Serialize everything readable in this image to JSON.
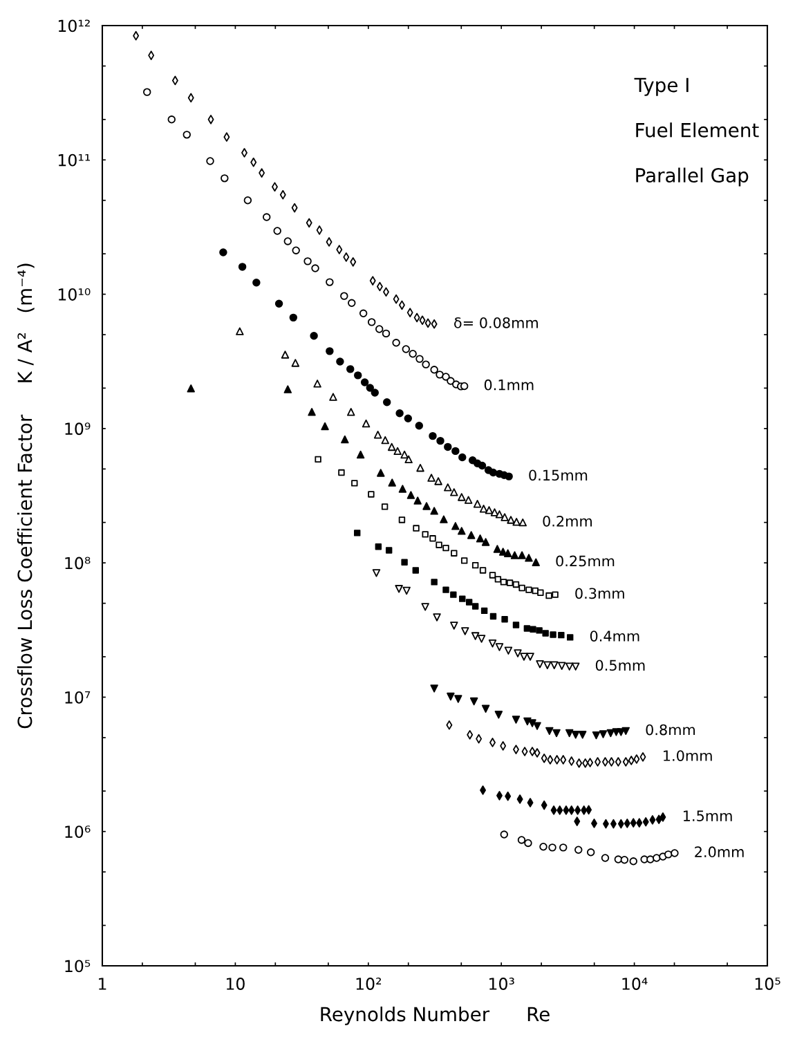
{
  "chart_data": {
    "type": "scatter",
    "xlabel": "Reynolds Number      Re",
    "ylabel": "Crossflow Loss Coefficient Factor     K / A²   (m⁻⁴)",
    "annotations": [
      "Type I",
      "Fuel Element",
      "Parallel Gap"
    ],
    "log": "xy",
    "grid": false,
    "xlim": [
      1,
      100000
    ],
    "ylim": [
      100000,
      1000000000000
    ],
    "xticks": [
      1,
      {
        "value": 2,
        "label": null
      },
      {
        "value": 5,
        "label": null
      },
      10,
      {
        "value": 20,
        "label": null
      },
      {
        "value": 50,
        "label": null
      },
      {
        "value": 100,
        "label": "10²"
      },
      {
        "value": 200,
        "label": null
      },
      {
        "value": 500,
        "label": null
      },
      {
        "value": 1000,
        "label": "10³"
      },
      {
        "value": 2000,
        "label": null
      },
      {
        "value": 5000,
        "label": null
      },
      {
        "value": 10000,
        "label": "10⁴"
      },
      {
        "value": 20000,
        "label": null
      },
      {
        "value": 50000,
        "label": null
      },
      {
        "value": 100000,
        "label": "10⁵"
      }
    ],
    "yticks": [
      {
        "value": 100000,
        "label": "10⁵"
      },
      {
        "value": 200000,
        "label": null
      },
      {
        "value": 500000,
        "label": null
      },
      {
        "value": 1000000,
        "label": "10⁶"
      },
      {
        "value": 2000000,
        "label": null
      },
      {
        "value": 5000000,
        "label": null
      },
      {
        "value": 10000000,
        "label": "10⁷"
      },
      {
        "value": 20000000,
        "label": null
      },
      {
        "value": 50000000,
        "label": null
      },
      {
        "value": 100000000,
        "label": "10⁸"
      },
      {
        "value": 200000000,
        "label": null
      },
      {
        "value": 500000000,
        "label": null
      },
      {
        "value": 1000000000,
        "label": "10⁹"
      },
      {
        "value": 2000000000,
        "label": null
      },
      {
        "value": 5000000000,
        "label": null
      },
      {
        "value": 10000000000,
        "label": "10¹⁰"
      },
      {
        "value": 20000000000,
        "label": null
      },
      {
        "value": 50000000000,
        "label": null
      },
      {
        "value": 100000000000,
        "label": "10¹¹"
      },
      {
        "value": 200000000000,
        "label": null
      },
      {
        "value": 500000000000,
        "label": null
      },
      {
        "value": 1000000000000,
        "label": "10¹²"
      }
    ],
    "series": [
      {
        "name": "δ= 0.08mm",
        "color": "#000000",
        "marker": "diamond_open",
        "x": [
          1.79,
          2.33,
          3.53,
          4.64,
          6.55,
          8.61,
          11.7,
          13.7,
          15.8,
          19.8,
          22.8,
          27.9,
          35.9,
          42.9,
          50.7,
          60.5,
          68.2,
          76.8,
          108,
          122,
          136,
          162,
          179,
          206,
          232,
          255,
          281,
          313
        ],
        "values": [
          840000000000.0,
          600000000000.0,
          390000000000.0,
          290000000000.0,
          200000000000.0,
          148000000000.0,
          113000000000.0,
          96000000000.0,
          80000000000.0,
          63000000000.0,
          55000000000.0,
          44000000000.0,
          34000000000.0,
          30000000000.0,
          24500000000.0,
          21500000000.0,
          18900000000.0,
          17400000000.0,
          12600000000.0,
          11400000000.0,
          10400000000.0,
          9200000000.0,
          8300000000.0,
          7300000000.0,
          6700000000.0,
          6400000000.0,
          6100000000.0,
          6000000000.0
        ]
      },
      {
        "name": "0.1mm",
        "color": "#000000",
        "marker": "circle_open",
        "x": [
          2.17,
          3.32,
          4.32,
          6.47,
          8.3,
          12.4,
          17.2,
          20.7,
          24.8,
          28.6,
          35.0,
          39.9,
          51.2,
          65.8,
          75.0,
          91.8,
          106,
          121,
          136,
          162,
          192,
          216,
          243,
          271,
          313,
          344,
          383,
          416,
          457,
          497,
          527
        ],
        "values": [
          320000000000.0,
          200000000000.0,
          154000000000.0,
          98000000000.0,
          73000000000.0,
          50000000000.0,
          37500000000.0,
          29600000000.0,
          24800000000.0,
          21200000000.0,
          17600000000.0,
          15600000000.0,
          12300000000.0,
          9700000000.0,
          8600000000.0,
          7200000000.0,
          6200000000.0,
          5500000000.0,
          5100000000.0,
          4350000000.0,
          3900000000.0,
          3600000000.0,
          3300000000.0,
          3000000000.0,
          2740000000.0,
          2520000000.0,
          2430000000.0,
          2260000000.0,
          2130000000.0,
          2060000000.0,
          2070000000.0
        ]
      },
      {
        "name": "0.15mm",
        "color": "#000000",
        "marker": "circle",
        "x": [
          8.11,
          11.3,
          14.4,
          21.3,
          27.3,
          39.0,
          51.2,
          61.3,
          73.2,
          83.5,
          94,
          103,
          112,
          138,
          172,
          199,
          241,
          305,
          348,
          396,
          452,
          509,
          608,
          661,
          718,
          800,
          869,
          968,
          1050,
          1140
        ],
        "values": [
          20500000000.0,
          16000000000.0,
          12200000000.0,
          8500000000.0,
          6700000000.0,
          4900000000.0,
          3770000000.0,
          3150000000.0,
          2770000000.0,
          2490000000.0,
          2210000000.0,
          2010000000.0,
          1850000000.0,
          1570000000.0,
          1300000000.0,
          1190000000.0,
          1050000000.0,
          880000000.0,
          810000000.0,
          730000000.0,
          680000000.0,
          610000000.0,
          580000000.0,
          550000000.0,
          530000000.0,
          490000000.0,
          470000000.0,
          460000000.0,
          450000000.0,
          440000000.0
        ]
      },
      {
        "name": "0.2mm",
        "color": "#000000",
        "marker": "triangle_open",
        "x": [
          10.8,
          23.7,
          28.3,
          41.4,
          54.4,
          74.1,
          96.2,
          118,
          134,
          150,
          166,
          187,
          201,
          246,
          298,
          336,
          396,
          441,
          503,
          566,
          661,
          736,
          809,
          890,
          968,
          1060,
          1180,
          1300,
          1450
        ],
        "values": [
          5300000000.0,
          3550000000.0,
          3080000000.0,
          2160000000.0,
          1720000000.0,
          1330000000.0,
          1090000000.0,
          900000000.0,
          820000000.0,
          730000000.0,
          680000000.0,
          640000000.0,
          590000000.0,
          510000000.0,
          430000000.0,
          406000000.0,
          365000000.0,
          336000000.0,
          309000000.0,
          294000000.0,
          275000000.0,
          253000000.0,
          247000000.0,
          238000000.0,
          230000000.0,
          219000000.0,
          209000000.0,
          202000000.0,
          200000000.0
        ]
      },
      {
        "name": "0.25mm",
        "color": "#000000",
        "marker": "triangle",
        "x": [
          4.64,
          24.8,
          37.6,
          47.2,
          66.6,
          87.5,
          124,
          151,
          181,
          209,
          235,
          274,
          313,
          369,
          452,
          503,
          594,
          693,
          763,
          933,
          1030,
          1120,
          1260,
          1430,
          1610,
          1820
        ],
        "values": [
          1990000000.0,
          1960000000.0,
          1330000000.0,
          1040000000.0,
          830000000.0,
          640000000.0,
          468000000.0,
          396000000.0,
          356000000.0,
          320000000.0,
          291000000.0,
          265000000.0,
          244000000.0,
          211000000.0,
          188000000.0,
          173000000.0,
          161000000.0,
          152000000.0,
          143000000.0,
          127000000.0,
          121000000.0,
          118000000.0,
          114000000.0,
          114000000.0,
          109000000.0,
          101000000.0
        ]
      },
      {
        "name": "0.3mm",
        "color": "#000000",
        "marker": "square_open",
        "x": [
          41.9,
          62.8,
          78.7,
          105,
          133,
          179,
          229,
          268,
          305,
          340,
          383,
          441,
          527,
          638,
          727,
          859,
          944,
          1040,
          1160,
          1290,
          1430,
          1610,
          1800,
          1970,
          2280,
          2540
        ],
        "values": [
          590000000.0,
          470000000.0,
          392000000.0,
          324000000.0,
          262000000.0,
          209000000.0,
          181000000.0,
          163000000.0,
          152000000.0,
          136000000.0,
          129000000.0,
          118000000.0,
          104000000.0,
          96000000.0,
          88000000.0,
          81000000.0,
          75500000.0,
          72000000.0,
          71000000.0,
          69000000.0,
          65000000.0,
          63000000.0,
          62000000.0,
          60000000.0,
          57000000.0,
          58000000.0
        ]
      },
      {
        "name": "0.4mm",
        "color": "#000000",
        "marker": "square",
        "x": [
          82.5,
          119,
          143,
          187,
          227,
          313,
          383,
          436,
          509,
          573,
          638,
          745,
          869,
          1060,
          1290,
          1560,
          1730,
          1930,
          2150,
          2450,
          2820,
          3290
        ],
        "values": [
          167000000.0,
          132000000.0,
          124000000.0,
          101000000.0,
          88000000.0,
          72000000.0,
          63000000.0,
          58000000.0,
          54000000.0,
          51000000.0,
          47500000.0,
          44000000.0,
          40000000.0,
          38000000.0,
          34500000.0,
          32500000.0,
          32000000.0,
          31400000.0,
          29900000.0,
          29200000.0,
          29000000.0,
          27900000.0
        ]
      },
      {
        "name": "0.5mm",
        "color": "#000000",
        "marker": "triangle_down_open",
        "x": [
          115,
          170,
          194,
          268,
          328,
          441,
          534,
          638,
          710,
          859,
          968,
          1130,
          1330,
          1480,
          1650,
          1950,
          2220,
          2500,
          2850,
          3250,
          3620
        ],
        "values": [
          84000000.0,
          64000000.0,
          62000000.0,
          47000000.0,
          39300000.0,
          34100000.0,
          31000000.0,
          28500000.0,
          27200000.0,
          25100000.0,
          23600000.0,
          22200000.0,
          21200000.0,
          20000000.0,
          20000000.0,
          17600000.0,
          17300000.0,
          17300000.0,
          17100000.0,
          16900000.0,
          16900000.0
        ]
      },
      {
        "name": "0.8mm",
        "color": "#000000",
        "marker": "triangle_down",
        "x": [
          313,
          416,
          474,
          623,
          763,
          955,
          1290,
          1570,
          1710,
          1860,
          2300,
          2600,
          3250,
          3620,
          4080,
          5170,
          5830,
          6640,
          7310,
          7940,
          8630
        ],
        "values": [
          11600000.0,
          10100000.0,
          9700000.0,
          9300000.0,
          8200000.0,
          7400000.0,
          6800000.0,
          6600000.0,
          6400000.0,
          6100000.0,
          5600000.0,
          5400000.0,
          5400000.0,
          5250000.0,
          5250000.0,
          5200000.0,
          5300000.0,
          5400000.0,
          5500000.0,
          5500000.0,
          5600000.0
        ]
      },
      {
        "name": "1.0mm",
        "color": "#000000",
        "marker": "diamond_open",
        "x": [
          406,
          580,
          677,
          859,
          1030,
          1290,
          1500,
          1710,
          1860,
          2100,
          2330,
          2620,
          2920,
          3370,
          3840,
          4280,
          4650,
          5300,
          6040,
          6730,
          7570,
          8630,
          9490,
          10400,
          11600
        ],
        "values": [
          6200000.0,
          5250000.0,
          4900000.0,
          4600000.0,
          4340000.0,
          4080000.0,
          3940000.0,
          3940000.0,
          3850000.0,
          3510000.0,
          3420000.0,
          3420000.0,
          3420000.0,
          3340000.0,
          3230000.0,
          3230000.0,
          3260000.0,
          3300000.0,
          3300000.0,
          3300000.0,
          3300000.0,
          3300000.0,
          3380000.0,
          3460000.0,
          3590000.0
        ]
      },
      {
        "name": "1.5mm",
        "color": "#000000",
        "marker": "diamond",
        "x": [
          727,
          968,
          1120,
          1380,
          1650,
          2100,
          2480,
          2750,
          3070,
          3370,
          3710,
          3750,
          4180,
          4540,
          4990,
          6110,
          6970,
          7940,
          8840,
          9840,
          10900,
          12200,
          13700,
          15300,
          16400
        ],
        "values": [
          2030000.0,
          1850000.0,
          1830000.0,
          1740000.0,
          1640000.0,
          1570000.0,
          1440000.0,
          1440000.0,
          1440000.0,
          1440000.0,
          1190000.0,
          1440000.0,
          1440000.0,
          1450000.0,
          1150000.0,
          1140000.0,
          1140000.0,
          1140000.0,
          1150000.0,
          1160000.0,
          1160000.0,
          1180000.0,
          1220000.0,
          1230000.0,
          1280000.0
        ]
      },
      {
        "name": "2.0mm",
        "color": "#000000",
        "marker": "circle_open",
        "x": [
          1050,
          1420,
          1590,
          2070,
          2420,
          2920,
          3800,
          4710,
          6040,
          7570,
          8430,
          9840,
          11900,
          13200,
          14700,
          16400,
          18000,
          20100
        ],
        "values": [
          950000.0,
          865000.0,
          820000.0,
          770000.0,
          760000.0,
          760000.0,
          730000.0,
          700000.0,
          635000.0,
          620000.0,
          615000.0,
          600000.0,
          620000.0,
          620000.0,
          635000.0,
          650000.0,
          675000.0,
          690000.0
        ]
      }
    ]
  }
}
